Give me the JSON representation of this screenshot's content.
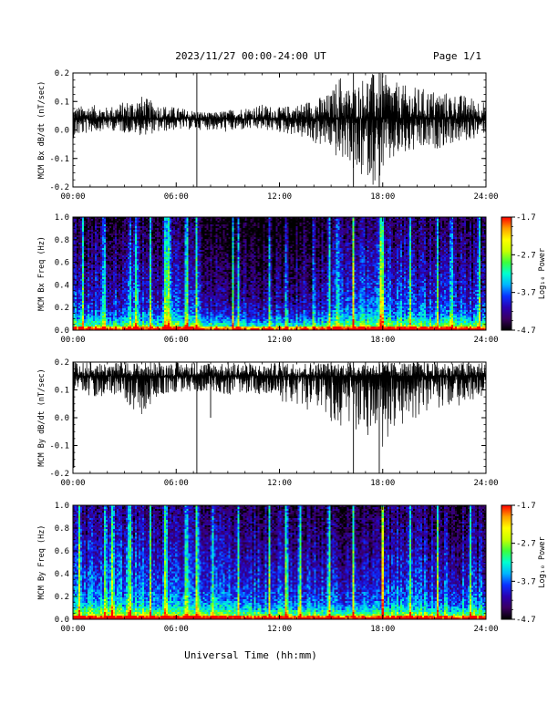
{
  "header": {
    "title": "2023/11/27  00:00-24:00 UT",
    "page": "Page 1/1"
  },
  "footer": {
    "xlabel": "Universal Time (hh:mm)"
  },
  "colors": {
    "trace": "#000000",
    "frame": "#000000",
    "colormap": [
      "#000000",
      "#3a0060",
      "#2a00b0",
      "#0a30ff",
      "#00b4ff",
      "#00ffd0",
      "#3cff3c",
      "#c8ff00",
      "#ffff00",
      "#ffa000",
      "#ff0000"
    ]
  },
  "chart_data": [
    {
      "type": "line",
      "ylabel": "MCM Bx dB/dt (nT/sec)",
      "ylim": [
        -0.2,
        0.2
      ],
      "xlim": [
        0,
        24
      ],
      "x_ticks": [
        "00:00",
        "06:00",
        "12:00",
        "18:00",
        "24:00"
      ],
      "y_ticks": [
        "0.2",
        "0.1",
        "0.0",
        "-0.1",
        "-0.2"
      ],
      "baseline": 0.04,
      "series": [
        {
          "x": [
            0,
            1,
            2,
            3,
            4,
            5,
            6,
            7,
            8,
            9,
            10,
            11,
            12,
            13,
            14,
            15,
            15.5,
            16,
            16.5,
            17,
            17.5,
            18,
            18.5,
            19,
            20,
            21,
            22,
            23,
            24
          ],
          "envelope_upper": [
            0.08,
            0.09,
            0.08,
            0.1,
            0.12,
            0.09,
            0.08,
            0.07,
            0.06,
            0.07,
            0.08,
            0.09,
            0.08,
            0.09,
            0.11,
            0.13,
            0.2,
            0.15,
            0.16,
            0.2,
            0.2,
            0.2,
            0.18,
            0.16,
            0.15,
            0.14,
            0.13,
            0.12,
            0.1
          ],
          "envelope_lower": [
            -0.03,
            -0.01,
            0.0,
            -0.01,
            -0.02,
            -0.01,
            0.0,
            0.0,
            0.0,
            -0.01,
            0.0,
            0.0,
            -0.01,
            -0.02,
            -0.05,
            -0.07,
            -0.12,
            -0.1,
            -0.2,
            -0.15,
            -0.2,
            -0.16,
            -0.12,
            -0.1,
            -0.08,
            -0.07,
            -0.05,
            -0.04,
            -0.01
          ]
        }
      ],
      "spikes": [
        {
          "x": 7.2,
          "low": -0.2,
          "high": 0.2
        },
        {
          "x": 16.3,
          "low": -0.2,
          "high": 0.2
        },
        {
          "x": 17.8,
          "low": -0.2,
          "high": 0.2
        }
      ]
    },
    {
      "type": "heatmap",
      "ylabel": "MCM Bx Freq (Hz)",
      "colorbar_label": "Log₁₀ Power",
      "colorbar_ticks": [
        "-1.7",
        "-2.7",
        "-3.7",
        "-4.7"
      ],
      "colorbar_range": [
        -4.7,
        -1.7
      ],
      "ylim": [
        0.0,
        1.0
      ],
      "xlim": [
        0,
        24
      ],
      "x_ticks": [
        "00:00",
        "06:00",
        "12:00",
        "18:00",
        "24:00"
      ],
      "y_ticks": [
        "1.0",
        "0.8",
        "0.6",
        "0.4",
        "0.2",
        "0.0"
      ],
      "activity_hours": [
        0,
        2,
        4,
        6,
        8,
        10,
        12,
        14,
        16,
        18,
        20,
        22,
        24
      ],
      "activity": [
        0.5,
        0.4,
        0.45,
        0.5,
        0.35,
        0.3,
        0.3,
        0.35,
        0.5,
        0.6,
        0.5,
        0.45,
        0.4
      ],
      "bright_bands_hours": [
        0.6,
        1.8,
        3.3,
        3.7,
        4.5,
        5.4,
        5.5,
        5.6,
        6.6,
        7.2,
        9.3,
        9.6,
        11.4,
        12.4,
        14.0,
        14.9,
        15.4,
        16.3,
        17.9,
        18.0,
        19.6,
        21.2,
        22.0,
        23.6
      ]
    },
    {
      "type": "line",
      "ylabel": "MCM By dB/dt (nT/sec)",
      "ylim": [
        -0.2,
        0.2
      ],
      "xlim": [
        0,
        24
      ],
      "x_ticks": [
        "00:00",
        "06:00",
        "12:00",
        "18:00",
        "24:00"
      ],
      "y_ticks": [
        "0.2",
        "0.1",
        "0.0",
        "-0.1",
        "-0.2"
      ],
      "baseline": 0.15,
      "series": [
        {
          "x": [
            0,
            1,
            2,
            3,
            4,
            5,
            6,
            7,
            8,
            9,
            10,
            11,
            12,
            13,
            14,
            15,
            15.5,
            16,
            16.5,
            17,
            17.5,
            18,
            18.5,
            19,
            20,
            21,
            22,
            23,
            24
          ],
          "envelope_upper": [
            0.2,
            0.2,
            0.2,
            0.2,
            0.2,
            0.2,
            0.2,
            0.2,
            0.2,
            0.2,
            0.2,
            0.19,
            0.2,
            0.2,
            0.2,
            0.2,
            0.2,
            0.2,
            0.2,
            0.2,
            0.2,
            0.2,
            0.2,
            0.2,
            0.2,
            0.2,
            0.2,
            0.2,
            0.2
          ],
          "envelope_lower": [
            0.1,
            0.07,
            0.08,
            0.05,
            0.0,
            0.08,
            0.09,
            0.09,
            0.1,
            0.08,
            0.09,
            0.08,
            0.06,
            0.04,
            0.02,
            -0.02,
            -0.03,
            -0.04,
            -0.05,
            -0.08,
            -0.07,
            -0.12,
            -0.05,
            -0.03,
            0.0,
            0.03,
            0.04,
            0.05,
            0.08
          ]
        }
      ],
      "spikes": [
        {
          "x": 0.05,
          "low": -0.18,
          "high": 0.2
        },
        {
          "x": 7.2,
          "low": -0.2,
          "high": 0.2
        },
        {
          "x": 16.3,
          "low": -0.2,
          "high": 0.2
        },
        {
          "x": 17.8,
          "low": -0.2,
          "high": 0.2
        },
        {
          "x": 8.0,
          "low": 0.0,
          "high": 0.15
        }
      ]
    },
    {
      "type": "heatmap",
      "ylabel": "MCM By Freq (Hz)",
      "colorbar_label": "Log₁₀ Power",
      "colorbar_ticks": [
        "-1.7",
        "-2.7",
        "-3.7",
        "-4.7"
      ],
      "colorbar_range": [
        -4.7,
        -1.7
      ],
      "ylim": [
        0.0,
        1.0
      ],
      "xlim": [
        0,
        24
      ],
      "x_ticks": [
        "00:00",
        "06:00",
        "12:00",
        "18:00",
        "24:00"
      ],
      "y_ticks": [
        "1.0",
        "0.8",
        "0.6",
        "0.4",
        "0.2",
        "0.0"
      ],
      "activity_hours": [
        0,
        2,
        4,
        6,
        8,
        10,
        12,
        14,
        16,
        18,
        20,
        22,
        24
      ],
      "activity": [
        0.55,
        0.65,
        0.6,
        0.6,
        0.55,
        0.5,
        0.5,
        0.5,
        0.45,
        0.55,
        0.55,
        0.5,
        0.5
      ],
      "bright_bands_hours": [
        0.4,
        1.9,
        2.3,
        3.3,
        4.5,
        5.4,
        6.6,
        7.2,
        8.1,
        9.6,
        11.4,
        12.4,
        13.2,
        14.9,
        16.3,
        18.0,
        19.6,
        21.2,
        23.1
      ]
    }
  ]
}
